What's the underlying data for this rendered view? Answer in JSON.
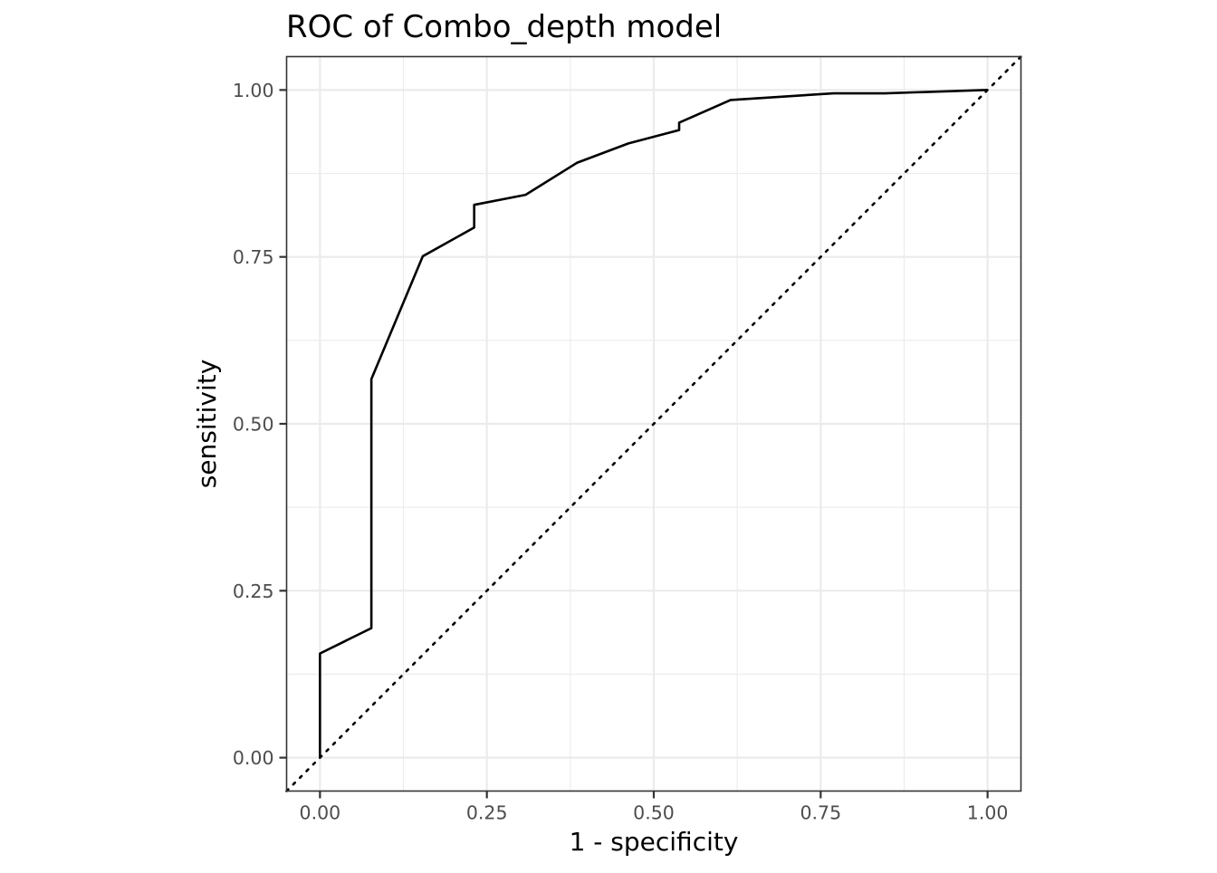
{
  "chart_data": {
    "type": "line",
    "title": "ROC of Combo_depth model",
    "xlabel": "1 - specificity",
    "ylabel": "sensitivity",
    "xlim": [
      -0.05,
      1.05
    ],
    "ylim": [
      -0.05,
      1.05
    ],
    "x_ticks": [
      0.0,
      0.25,
      0.5,
      0.75,
      1.0
    ],
    "x_tick_labels": [
      "0.00",
      "0.25",
      "0.50",
      "0.75",
      "1.00"
    ],
    "y_ticks": [
      0.0,
      0.25,
      0.5,
      0.75,
      1.0
    ],
    "y_tick_labels": [
      "0.00",
      "0.25",
      "0.50",
      "0.75",
      "1.00"
    ],
    "grid": true,
    "series": [
      {
        "x": [
          0.0,
          0.0,
          0.077,
          0.077,
          0.154,
          0.231,
          0.231,
          0.308,
          0.385,
          0.462,
          0.538,
          0.538,
          0.615,
          0.769,
          0.846,
          1.0
        ],
        "y": [
          0.0,
          0.156,
          0.194,
          0.567,
          0.751,
          0.794,
          0.828,
          0.843,
          0.891,
          0.92,
          0.94,
          0.951,
          0.985,
          0.995,
          0.995,
          1.0
        ]
      }
    ],
    "reference_line": {
      "x": [
        -0.05,
        1.05
      ],
      "y": [
        -0.05,
        1.05
      ],
      "style": "dotted"
    }
  }
}
